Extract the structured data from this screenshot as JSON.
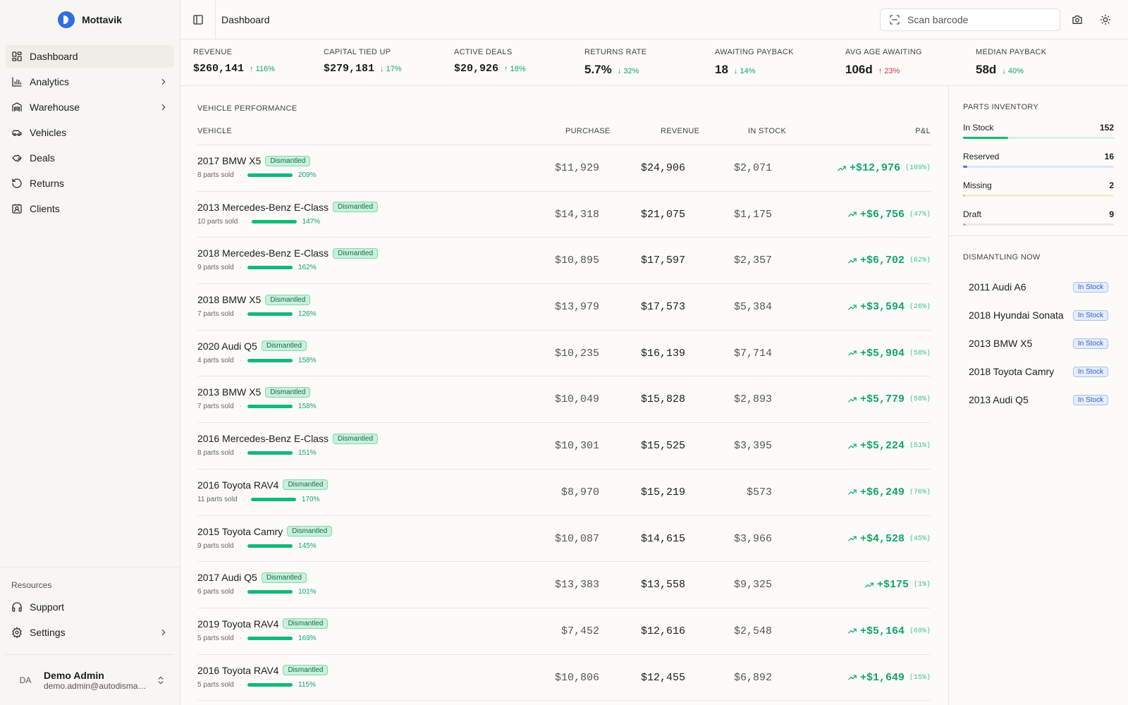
{
  "brand": {
    "name": "Mottavik",
    "accent": "#2f6fde"
  },
  "sidebar": {
    "items": [
      {
        "label": "Dashboard",
        "icon": "dashboard-icon",
        "active": true,
        "chevron": false
      },
      {
        "label": "Analytics",
        "icon": "chart-icon",
        "active": false,
        "chevron": true
      },
      {
        "label": "Warehouse",
        "icon": "warehouse-icon",
        "active": false,
        "chevron": true
      },
      {
        "label": "Vehicles",
        "icon": "car-icon",
        "active": false,
        "chevron": false
      },
      {
        "label": "Deals",
        "icon": "handshake-icon",
        "active": false,
        "chevron": false
      },
      {
        "label": "Returns",
        "icon": "rotate-ccw-icon",
        "active": false,
        "chevron": false
      },
      {
        "label": "Clients",
        "icon": "contact-icon",
        "active": false,
        "chevron": false
      }
    ],
    "resources_label": "Resources",
    "resources": [
      {
        "label": "Support",
        "icon": "headphones-icon",
        "chevron": false
      },
      {
        "label": "Settings",
        "icon": "gear-icon",
        "chevron": true
      }
    ],
    "user": {
      "initials": "DA",
      "name": "Demo Admin",
      "email": "demo.admin@autodismantle..."
    }
  },
  "header": {
    "title": "Dashboard",
    "search_placeholder": "Scan barcode"
  },
  "stats": [
    {
      "label": "REVENUE",
      "value": "$260,141",
      "delta": "116%",
      "dir": "up",
      "tone": "good"
    },
    {
      "label": "CAPITAL TIED UP",
      "value": "$279,181",
      "delta": "17%",
      "dir": "down",
      "tone": "good"
    },
    {
      "label": "ACTIVE DEALS",
      "value": "$20,926",
      "delta": "18%",
      "dir": "up",
      "tone": "good"
    },
    {
      "label": "RETURNS RATE",
      "value": "5.7%",
      "delta": "32%",
      "dir": "down",
      "tone": "good"
    },
    {
      "label": "AWAITING PAYBACK",
      "value": "18",
      "delta": "14%",
      "dir": "down",
      "tone": "good"
    },
    {
      "label": "AVG AGE AWAITING",
      "value": "106d",
      "delta": "23%",
      "dir": "up",
      "tone": "bad"
    },
    {
      "label": "MEDIAN PAYBACK",
      "value": "58d",
      "delta": "40%",
      "dir": "down",
      "tone": "good"
    }
  ],
  "performance": {
    "title": "VEHICLE PERFORMANCE",
    "columns": {
      "vehicle": "VEHICLE",
      "purchase": "PURCHASE",
      "revenue": "REVENUE",
      "stock": "IN STOCK",
      "pl": "P&L"
    },
    "rows": [
      {
        "vehicle": "2017 BMW X5",
        "status": "Dismantled",
        "parts": "8 parts sold",
        "ratio": "209%",
        "purchase": "$11,929",
        "revenue": "$24,906",
        "stock": "$2,071",
        "pl": "+$12,976",
        "pl_pct": "(109%)"
      },
      {
        "vehicle": "2013 Mercedes-Benz E-Class",
        "status": "Dismantled",
        "parts": "10 parts sold",
        "ratio": "147%",
        "purchase": "$14,318",
        "revenue": "$21,075",
        "stock": "$1,175",
        "pl": "+$6,756",
        "pl_pct": "(47%)"
      },
      {
        "vehicle": "2018 Mercedes-Benz E-Class",
        "status": "Dismantled",
        "parts": "9 parts sold",
        "ratio": "162%",
        "purchase": "$10,895",
        "revenue": "$17,597",
        "stock": "$2,357",
        "pl": "+$6,702",
        "pl_pct": "(62%)"
      },
      {
        "vehicle": "2018 BMW X5",
        "status": "Dismantled",
        "parts": "7 parts sold",
        "ratio": "126%",
        "purchase": "$13,979",
        "revenue": "$17,573",
        "stock": "$5,384",
        "pl": "+$3,594",
        "pl_pct": "(26%)"
      },
      {
        "vehicle": "2020 Audi Q5",
        "status": "Dismantled",
        "parts": "4 parts sold",
        "ratio": "158%",
        "purchase": "$10,235",
        "revenue": "$16,139",
        "stock": "$7,714",
        "pl": "+$5,904",
        "pl_pct": "(58%)"
      },
      {
        "vehicle": "2013 BMW X5",
        "status": "Dismantled",
        "parts": "7 parts sold",
        "ratio": "158%",
        "purchase": "$10,049",
        "revenue": "$15,828",
        "stock": "$2,893",
        "pl": "+$5,779",
        "pl_pct": "(58%)"
      },
      {
        "vehicle": "2016 Mercedes-Benz E-Class",
        "status": "Dismantled",
        "parts": "8 parts sold",
        "ratio": "151%",
        "purchase": "$10,301",
        "revenue": "$15,525",
        "stock": "$3,395",
        "pl": "+$5,224",
        "pl_pct": "(51%)"
      },
      {
        "vehicle": "2016 Toyota RAV4",
        "status": "Dismantled",
        "parts": "11 parts sold",
        "ratio": "170%",
        "purchase": "$8,970",
        "revenue": "$15,219",
        "stock": "$573",
        "pl": "+$6,249",
        "pl_pct": "(70%)"
      },
      {
        "vehicle": "2015 Toyota Camry",
        "status": "Dismantled",
        "parts": "9 parts sold",
        "ratio": "145%",
        "purchase": "$10,087",
        "revenue": "$14,615",
        "stock": "$3,966",
        "pl": "+$4,528",
        "pl_pct": "(45%)"
      },
      {
        "vehicle": "2017 Audi Q5",
        "status": "Dismantled",
        "parts": "6 parts sold",
        "ratio": "101%",
        "purchase": "$13,383",
        "revenue": "$13,558",
        "stock": "$9,325",
        "pl": "+$175",
        "pl_pct": "(1%)"
      },
      {
        "vehicle": "2019 Toyota RAV4",
        "status": "Dismantled",
        "parts": "5 parts sold",
        "ratio": "169%",
        "purchase": "$7,452",
        "revenue": "$12,616",
        "stock": "$2,548",
        "pl": "+$5,164",
        "pl_pct": "(69%)"
      },
      {
        "vehicle": "2016 Toyota RAV4",
        "status": "Dismantled",
        "parts": "5 parts sold",
        "ratio": "115%",
        "purchase": "$10,806",
        "revenue": "$12,455",
        "stock": "$6,892",
        "pl": "+$1,649",
        "pl_pct": "(15%)"
      }
    ]
  },
  "inventory": {
    "title": "PARTS INVENTORY",
    "items": [
      {
        "label": "In Stock",
        "count": "152",
        "fraction": 0.3,
        "color": "#14b87a",
        "track": "#d8f1e6"
      },
      {
        "label": "Reserved",
        "count": "16",
        "fraction": 0.03,
        "color": "#3b7be8",
        "track": "#dce6f8"
      },
      {
        "label": "Missing",
        "count": "2",
        "fraction": 0.005,
        "color": "#f0b429",
        "track": "#f8ead0"
      },
      {
        "label": "Draft",
        "count": "9",
        "fraction": 0.02,
        "color": "#b5b3ad",
        "track": "#ebe9e4"
      }
    ]
  },
  "dismantling": {
    "title": "DISMANTLING NOW",
    "items": [
      {
        "name": "2011 Audi A6",
        "status": "In Stock"
      },
      {
        "name": "2018 Hyundai Sonata",
        "status": "In Stock"
      },
      {
        "name": "2013 BMW X5",
        "status": "In Stock"
      },
      {
        "name": "2018 Toyota Camry",
        "status": "In Stock"
      },
      {
        "name": "2013 Audi Q5",
        "status": "In Stock"
      }
    ]
  }
}
